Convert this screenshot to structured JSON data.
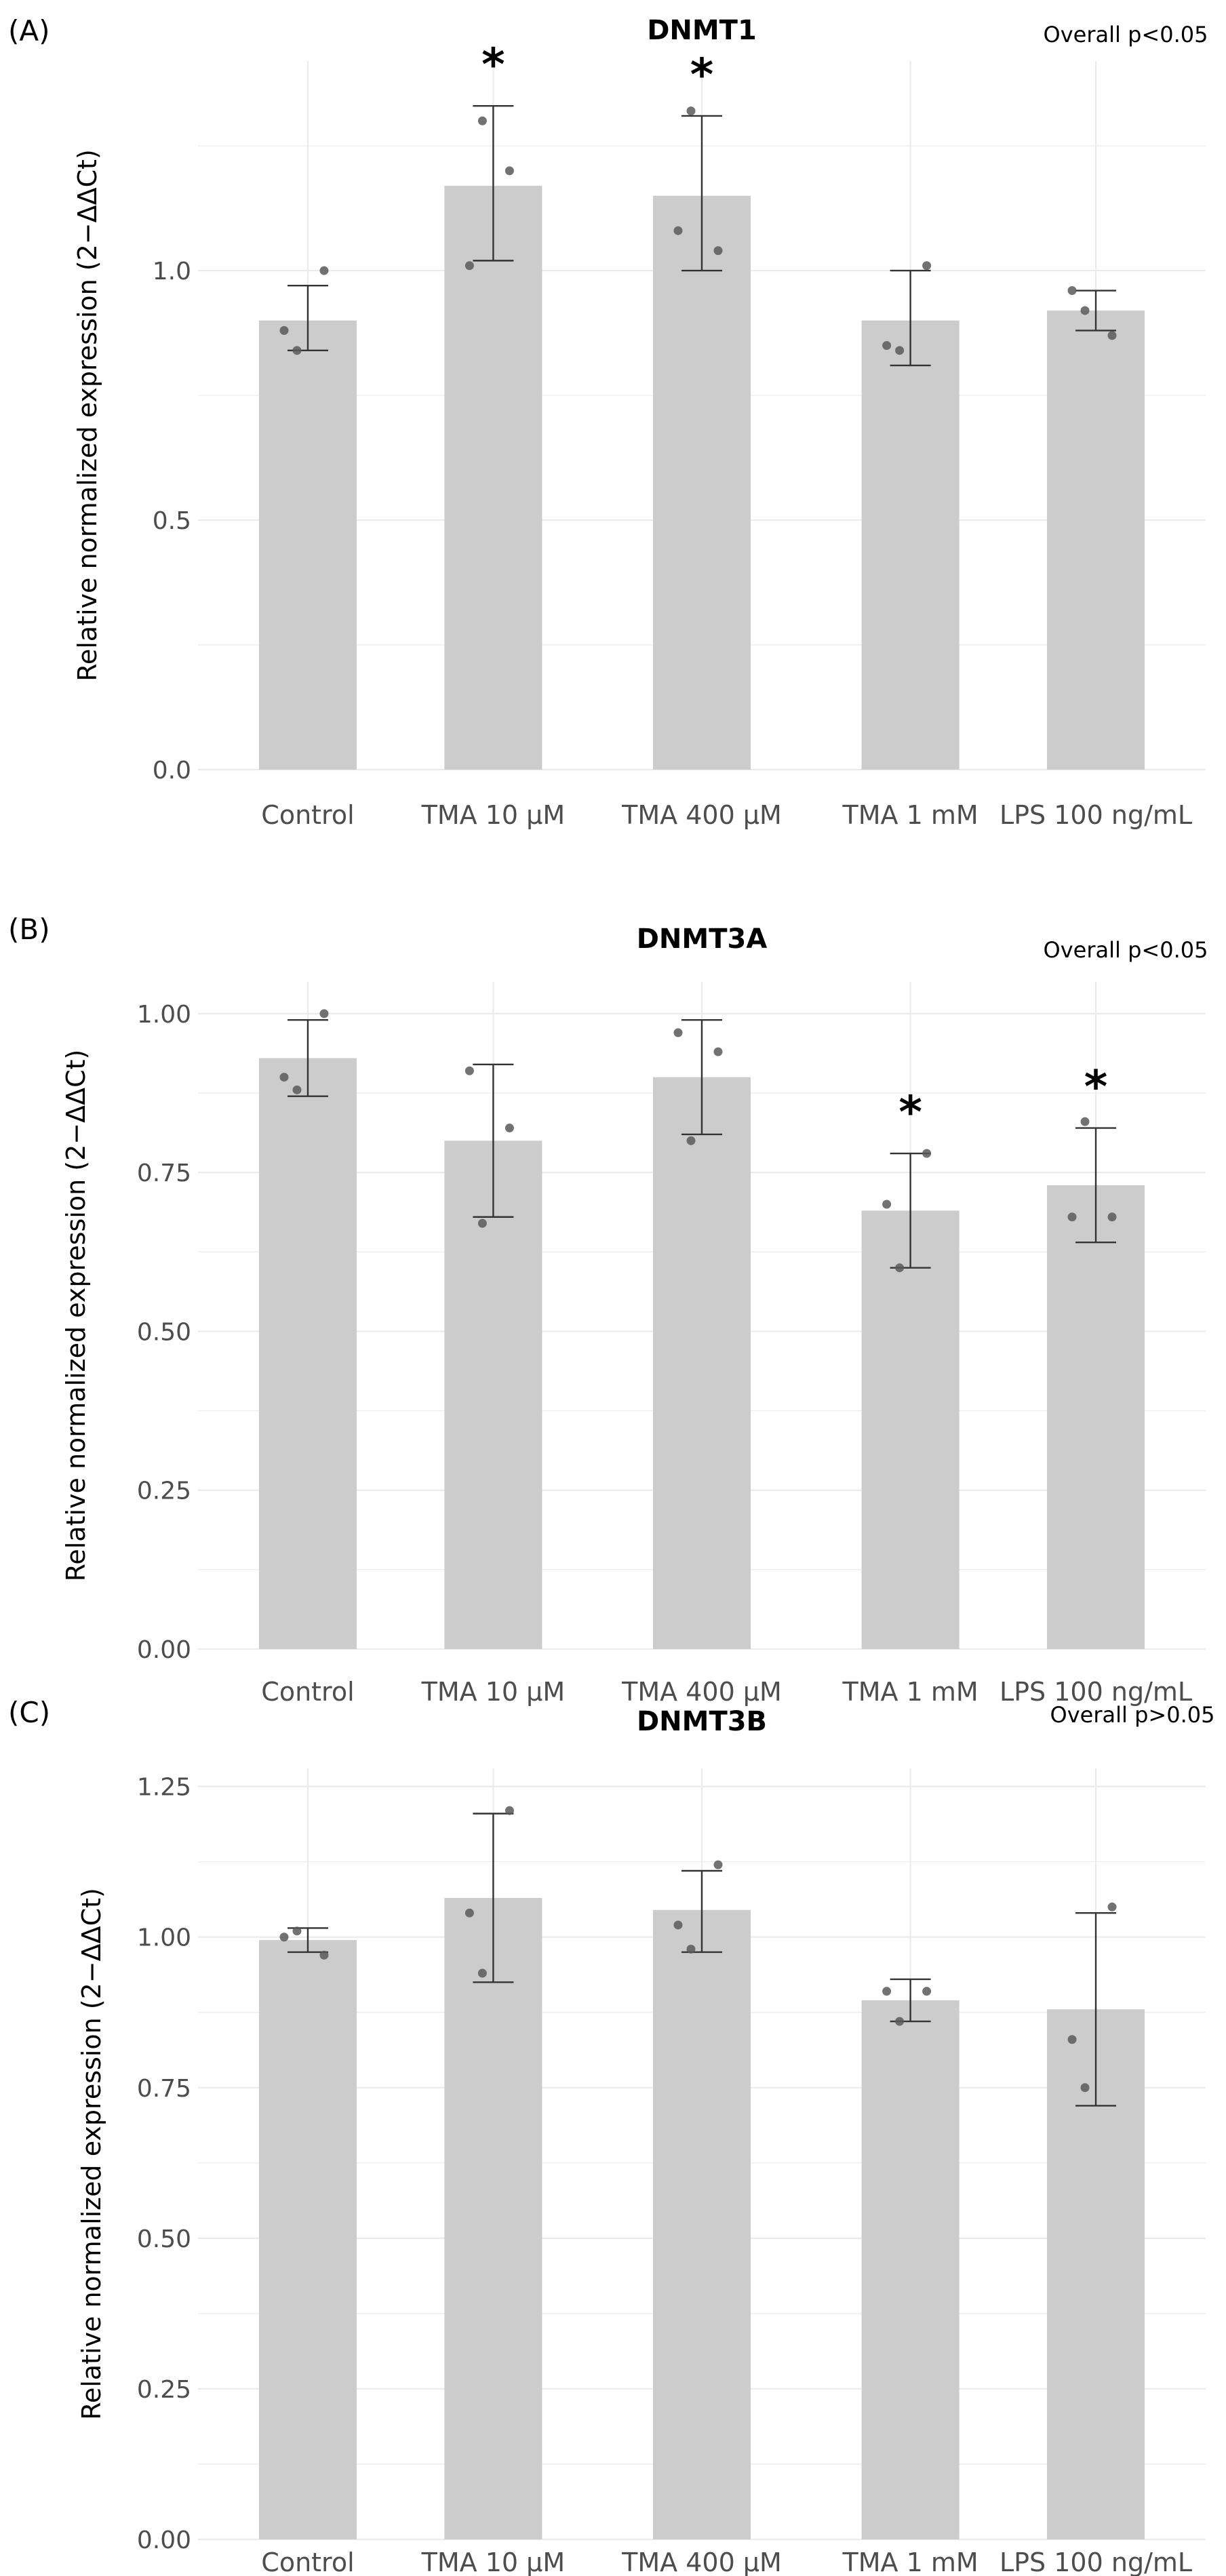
{
  "chart_data": [
    {
      "panel_label": "(A)",
      "type": "bar",
      "title": "DNMT1",
      "annotation": "Overall p<0.05",
      "ylabel": "Relative normalized expression (2−ΔΔCt)",
      "xlabel": "",
      "categories": [
        "Control",
        "TMA 10 µM",
        "TMA 400 µM",
        "TMA 1 mM",
        "LPS 100 ng/mL"
      ],
      "values": [
        0.9,
        1.17,
        1.15,
        0.9,
        0.92
      ],
      "error_low": [
        0.84,
        1.02,
        1.0,
        0.81,
        0.88
      ],
      "error_high": [
        0.97,
        1.33,
        1.31,
        1.0,
        0.96
      ],
      "points": [
        [
          0.88,
          0.84,
          1.0
        ],
        [
          1.01,
          1.3,
          1.2
        ],
        [
          1.08,
          1.32,
          1.04
        ],
        [
          0.85,
          0.84,
          1.01
        ],
        [
          0.96,
          0.92,
          0.87
        ]
      ],
      "significance": [
        "",
        "*",
        "*",
        "",
        ""
      ],
      "ylim": [
        0,
        1.42
      ],
      "yticks": [
        0,
        0.5,
        1.0
      ],
      "ytick_labels": [
        "0.0",
        "0.5",
        "1.0"
      ],
      "grid": true
    },
    {
      "panel_label": "(B)",
      "type": "bar",
      "title": "DNMT3A",
      "annotation": "Overall p<0.05",
      "ylabel": "Relative normalized expression (2−ΔΔCt)",
      "xlabel": "",
      "categories": [
        "Control",
        "TMA 10 µM",
        "TMA 400 µM",
        "TMA 1 mM",
        "LPS 100 ng/mL"
      ],
      "values": [
        0.93,
        0.8,
        0.9,
        0.69,
        0.73
      ],
      "error_low": [
        0.87,
        0.68,
        0.81,
        0.6,
        0.64
      ],
      "error_high": [
        0.99,
        0.92,
        0.99,
        0.78,
        0.82
      ],
      "points": [
        [
          0.9,
          0.88,
          1.0
        ],
        [
          0.91,
          0.67,
          0.82
        ],
        [
          0.97,
          0.8,
          0.94
        ],
        [
          0.7,
          0.6,
          0.78
        ],
        [
          0.68,
          0.83,
          0.68
        ]
      ],
      "significance": [
        "",
        "",
        "",
        "*",
        "*"
      ],
      "ylim": [
        0,
        1.05
      ],
      "yticks": [
        0,
        0.25,
        0.5,
        0.75,
        1.0
      ],
      "ytick_labels": [
        "0.00",
        "0.25",
        "0.50",
        "0.75",
        "1.00"
      ],
      "grid": true
    },
    {
      "panel_label": "(C)",
      "type": "bar",
      "title": "DNMT3B",
      "annotation": "Overall p>0.05",
      "ylabel": "Relative normalized expression (2−ΔΔCt)",
      "xlabel": "",
      "categories": [
        "Control",
        "TMA 10 µM",
        "TMA 400 µM",
        "TMA 1 mM",
        "LPS 100 ng/mL"
      ],
      "values": [
        0.995,
        1.065,
        1.045,
        0.895,
        0.88
      ],
      "error_low": [
        0.975,
        0.925,
        0.975,
        0.86,
        0.72
      ],
      "error_high": [
        1.015,
        1.205,
        1.11,
        0.93,
        1.04
      ],
      "points": [
        [
          1.0,
          1.01,
          0.97
        ],
        [
          1.04,
          0.94,
          1.21
        ],
        [
          1.02,
          0.98,
          1.12
        ],
        [
          0.91,
          0.86,
          0.91
        ],
        [
          0.83,
          0.75,
          1.05
        ]
      ],
      "significance": [
        "",
        "",
        "",
        "",
        ""
      ],
      "ylim": [
        0,
        1.28
      ],
      "yticks": [
        0,
        0.25,
        0.5,
        0.75,
        1.0,
        1.25
      ],
      "ytick_labels": [
        "0.00",
        "0.25",
        "0.50",
        "0.75",
        "1.00",
        "1.25"
      ],
      "grid": true
    }
  ],
  "colors": {
    "bar": "#cccccc",
    "grid": "#ebebeb",
    "axis_text": "#4d4d4d",
    "point": "#595959",
    "errorbar": "#333333",
    "text": "#000000"
  }
}
